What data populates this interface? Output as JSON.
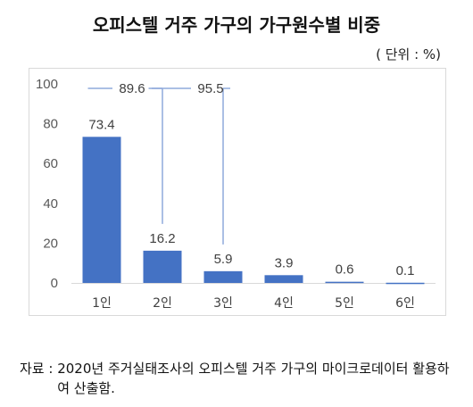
{
  "title": "오피스텔 거주 가구의 가구원수별 비중",
  "unit_note": "( 단위 : %)",
  "source_label": "자료 : ",
  "source_text": "2020년 주거실태조사의 오피스텔 거주 가구의 마이크로데이터 활용하여 산출함.",
  "chart_data": {
    "type": "bar",
    "title": "오피스텔 거주 가구의 가구원수별 비중",
    "categories": [
      "1인",
      "2인",
      "3인",
      "4인",
      "5인",
      "6인"
    ],
    "values": [
      73.4,
      16.2,
      5.9,
      3.9,
      0.6,
      0.1
    ],
    "value_labels": [
      "73.4",
      "16.2",
      "5.9",
      "3.9",
      "0.6",
      "0.1"
    ],
    "ylim": [
      0,
      100
    ],
    "yticks": [
      0,
      20,
      40,
      60,
      80,
      100
    ],
    "grid": false,
    "legend": "none",
    "bar_color": "#4472c4",
    "annotations": [
      {
        "text": "89.6",
        "from_category": "1인",
        "to_category": "2인",
        "note": "cumulative 1인+2인"
      },
      {
        "text": "95.5",
        "from_category": "2인",
        "to_category": "3인",
        "note": "cumulative 1인+2인+3인"
      }
    ]
  }
}
